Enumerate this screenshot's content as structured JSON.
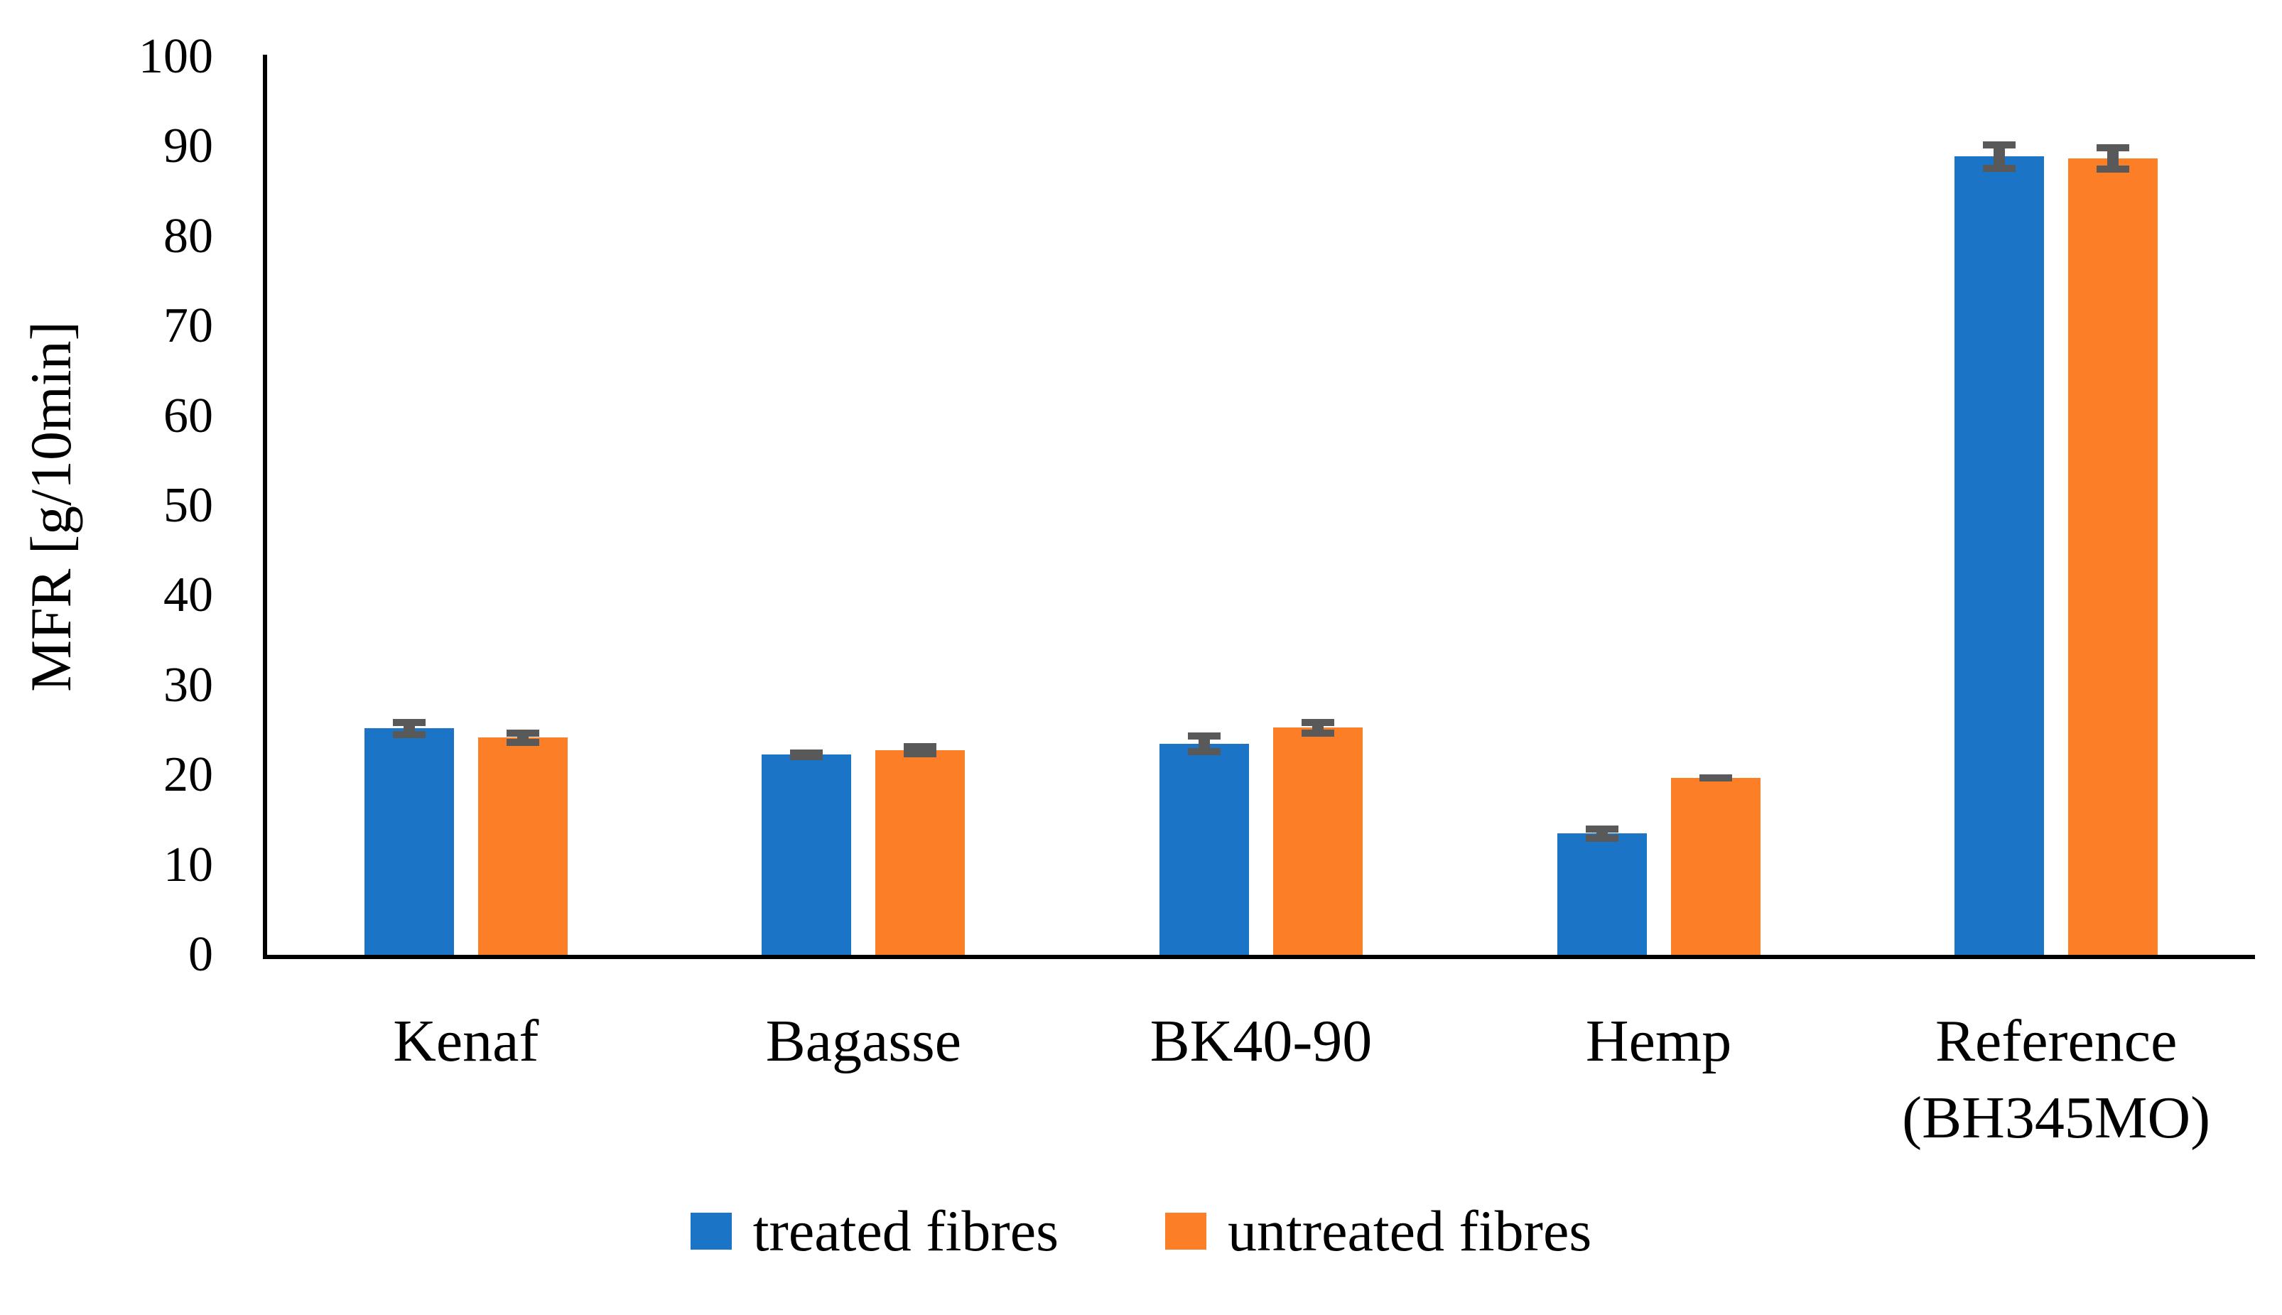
{
  "chart_data": {
    "type": "bar",
    "title": "",
    "ylabel": "MFR [g/10min]",
    "xlabel": "",
    "ylim": [
      0,
      100
    ],
    "yticks": [
      0,
      10,
      20,
      30,
      40,
      50,
      60,
      70,
      80,
      90,
      100
    ],
    "grid": false,
    "legend_position": "bottom",
    "categories": [
      "Kenaf",
      "Bagasse",
      "BK40-90",
      "Hemp",
      "Reference\n(BH345MO)"
    ],
    "series": [
      {
        "name": "treated fibres",
        "color": "#1B74C5",
        "values": [
          25.2,
          22.3,
          23.5,
          13.5,
          88.9
        ],
        "errors": [
          1.1,
          0.6,
          1.3,
          0.9,
          1.7
        ]
      },
      {
        "name": "untreated fibres",
        "color": "#FC7E26",
        "values": [
          24.2,
          22.8,
          25.3,
          19.7,
          88.7
        ],
        "errors": [
          0.9,
          0.8,
          1.0,
          0.4,
          1.6
        ]
      }
    ],
    "error_bar_color": "#595959",
    "axis_color": "#000000"
  }
}
